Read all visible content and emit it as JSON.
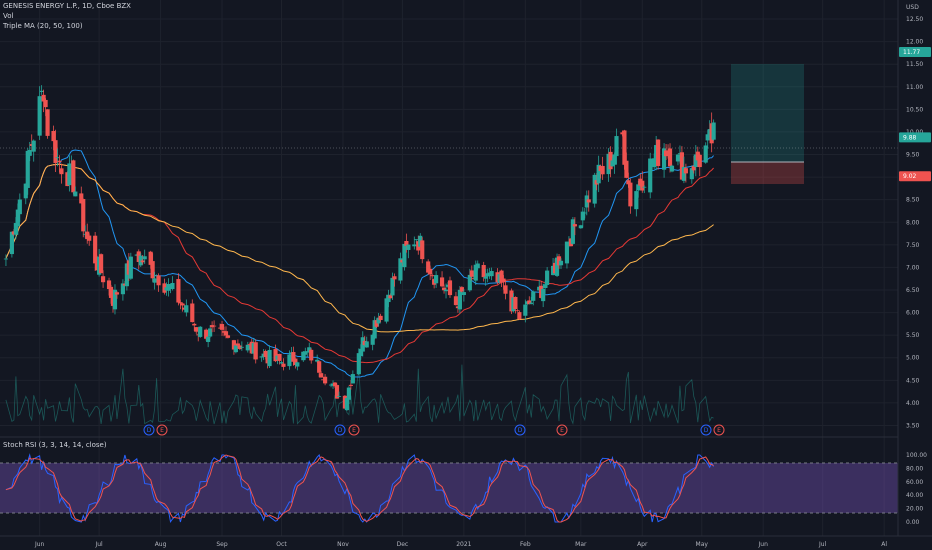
{
  "header": {
    "symbol_title": "GENESIS ENERGY L.P., 1D, Cboe BZX",
    "volume_label": "Vol",
    "ma_label": "Triple MA (20, 50, 100)",
    "currency": "USD"
  },
  "oscillator": {
    "label": "Stoch RSI (3, 3, 14, 14, close)",
    "ticks": [
      "100.00",
      "80.00",
      "60.00",
      "40.00",
      "20.00",
      "0.00"
    ]
  },
  "price_axis": {
    "ticks": [
      "12.50",
      "12.00",
      "11.50",
      "11.00",
      "10.50",
      "10.00",
      "9.50",
      "9.00",
      "8.50",
      "8.00",
      "7.50",
      "7.00",
      "6.50",
      "6.00",
      "5.50",
      "5.00",
      "4.50",
      "4.00",
      "3.50"
    ],
    "tags": [
      {
        "label": "11.77",
        "color": "#26a69a",
        "value": 11.77
      },
      {
        "label": "9.88",
        "color": "#26a69a",
        "value": 9.88
      },
      {
        "label": "9.02",
        "color": "#ef5350",
        "value": 9.02
      }
    ]
  },
  "time_axis": {
    "labels": [
      "Jun",
      "Jul",
      "Aug",
      "Sep",
      "Oct",
      "Nov",
      "Dec",
      "2021",
      "Feb",
      "Mar",
      "Apr",
      "May",
      "Jun",
      "Jul",
      "Al"
    ]
  },
  "events": [
    {
      "label": "D",
      "color": "#2962ff"
    },
    {
      "label": "E",
      "color": "#ef5350"
    },
    {
      "label": "D",
      "color": "#2962ff"
    },
    {
      "label": "E",
      "color": "#ef5350"
    },
    {
      "label": "D",
      "color": "#2962ff"
    },
    {
      "label": "E",
      "color": "#ef5350"
    },
    {
      "label": "D",
      "color": "#2962ff"
    },
    {
      "label": "E",
      "color": "#ef5350"
    }
  ],
  "colors": {
    "background": "#131722",
    "up_candle": "#26a69a",
    "down_candle": "#ef5350",
    "ma20": "#2196f3",
    "ma50": "#e53935",
    "ma100": "#ffb74d",
    "stoch_k": "#2962ff",
    "stoch_d": "#ef5350",
    "stoch_band": "#7e57c2",
    "profit_zone": "#26a69a",
    "loss_zone": "#ef5350"
  },
  "chart_data": {
    "type": "candlestick",
    "symbol": "GENESIS ENERGY L.P.",
    "timeframe": "1D",
    "price_range": [
      3.4,
      12.7
    ],
    "position": {
      "entry": 9.5,
      "target": 11.77,
      "stop": 9.02
    },
    "anchors": [
      {
        "date": "2020-05-15",
        "close": 7.2
      },
      {
        "date": "2020-05-22",
        "close": 8.5
      },
      {
        "date": "2020-06-03",
        "close": 11.0
      },
      {
        "date": "2020-06-05",
        "close": 10.1
      },
      {
        "date": "2020-06-10",
        "close": 9.4
      },
      {
        "date": "2020-06-18",
        "close": 8.9
      },
      {
        "date": "2020-06-25",
        "close": 7.6
      },
      {
        "date": "2020-07-08",
        "close": 6.3
      },
      {
        "date": "2020-07-20",
        "close": 7.3
      },
      {
        "date": "2020-07-31",
        "close": 6.8
      },
      {
        "date": "2020-08-10",
        "close": 6.3
      },
      {
        "date": "2020-08-20",
        "close": 5.6
      },
      {
        "date": "2020-08-31",
        "close": 5.5
      },
      {
        "date": "2020-09-15",
        "close": 5.2
      },
      {
        "date": "2020-09-30",
        "close": 4.9
      },
      {
        "date": "2020-10-15",
        "close": 5.1
      },
      {
        "date": "2020-10-29",
        "close": 4.2
      },
      {
        "date": "2020-11-02",
        "close": 4.0
      },
      {
        "date": "2020-11-09",
        "close": 5.2
      },
      {
        "date": "2020-11-20",
        "close": 6.0
      },
      {
        "date": "2020-12-02",
        "close": 7.3
      },
      {
        "date": "2020-12-08",
        "close": 7.7
      },
      {
        "date": "2020-12-16",
        "close": 6.9
      },
      {
        "date": "2020-12-28",
        "close": 6.2
      },
      {
        "date": "2021-01-08",
        "close": 6.9
      },
      {
        "date": "2021-01-20",
        "close": 6.6
      },
      {
        "date": "2021-01-29",
        "close": 5.9
      },
      {
        "date": "2021-02-12",
        "close": 6.7
      },
      {
        "date": "2021-02-26",
        "close": 7.9
      },
      {
        "date": "2021-03-08",
        "close": 8.9
      },
      {
        "date": "2021-03-15",
        "close": 9.3
      },
      {
        "date": "2021-03-22",
        "close": 9.9
      },
      {
        "date": "2021-03-26",
        "close": 8.5
      },
      {
        "date": "2021-04-01",
        "close": 9.0
      },
      {
        "date": "2021-04-12",
        "close": 9.7
      },
      {
        "date": "2021-04-22",
        "close": 9.2
      },
      {
        "date": "2021-04-30",
        "close": 9.4
      },
      {
        "date": "2021-05-07",
        "close": 9.9
      }
    ]
  }
}
